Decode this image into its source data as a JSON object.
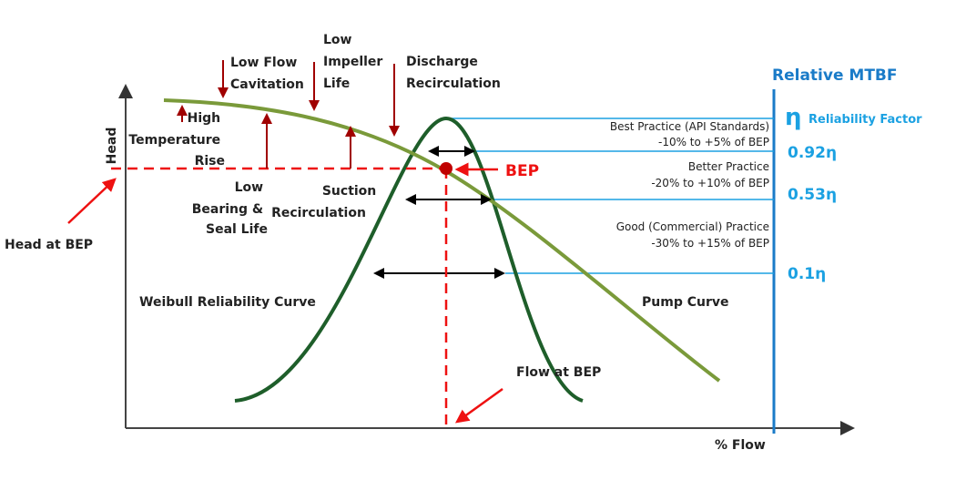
{
  "axes": {
    "y_label": "Head",
    "x_label": "% Flow"
  },
  "annotations": {
    "low_flow_cavitation": [
      "Low Flow",
      "Cavitation"
    ],
    "low_impeller_life": [
      "Low",
      "Impeller",
      "Life"
    ],
    "discharge_recirculation": [
      "Discharge",
      "Recirculation"
    ],
    "high_temperature_rise": [
      "High",
      "Temperature",
      "Rise"
    ],
    "low_bearing_seal_life": [
      "Low",
      "Bearing &",
      "Seal Life"
    ],
    "suction_recirculation": [
      "Suction",
      "Recirculation"
    ],
    "head_at_bep": "Head at BEP",
    "flow_at_bep": "Flow at BEP",
    "bep": "BEP",
    "weibull_curve": "Weibull Reliability Curve",
    "pump_curve": "Pump Curve"
  },
  "mtbf": {
    "title": "Relative MTBF",
    "symbol": "η",
    "factor_label": "Reliability Factor",
    "practices": [
      {
        "name": "Best Practice (API Standards)",
        "range": "-10% to +5% of BEP",
        "factor": "0.92η"
      },
      {
        "name": "Better Practice",
        "range": "-20% to +10% of BEP",
        "factor": "0.53η"
      },
      {
        "name": "Good (Commercial) Practice",
        "range": "-30% to  +15% of BEP",
        "factor": "0.1η"
      }
    ]
  },
  "colors": {
    "pump_curve": "#7a9a3a",
    "weibull_curve": "#1e5e2a",
    "bep": "#cc0000",
    "mtbf_axis": "#1a7bc8",
    "bands": "#1ba1e2",
    "cause_arrows": "#a00000"
  }
}
